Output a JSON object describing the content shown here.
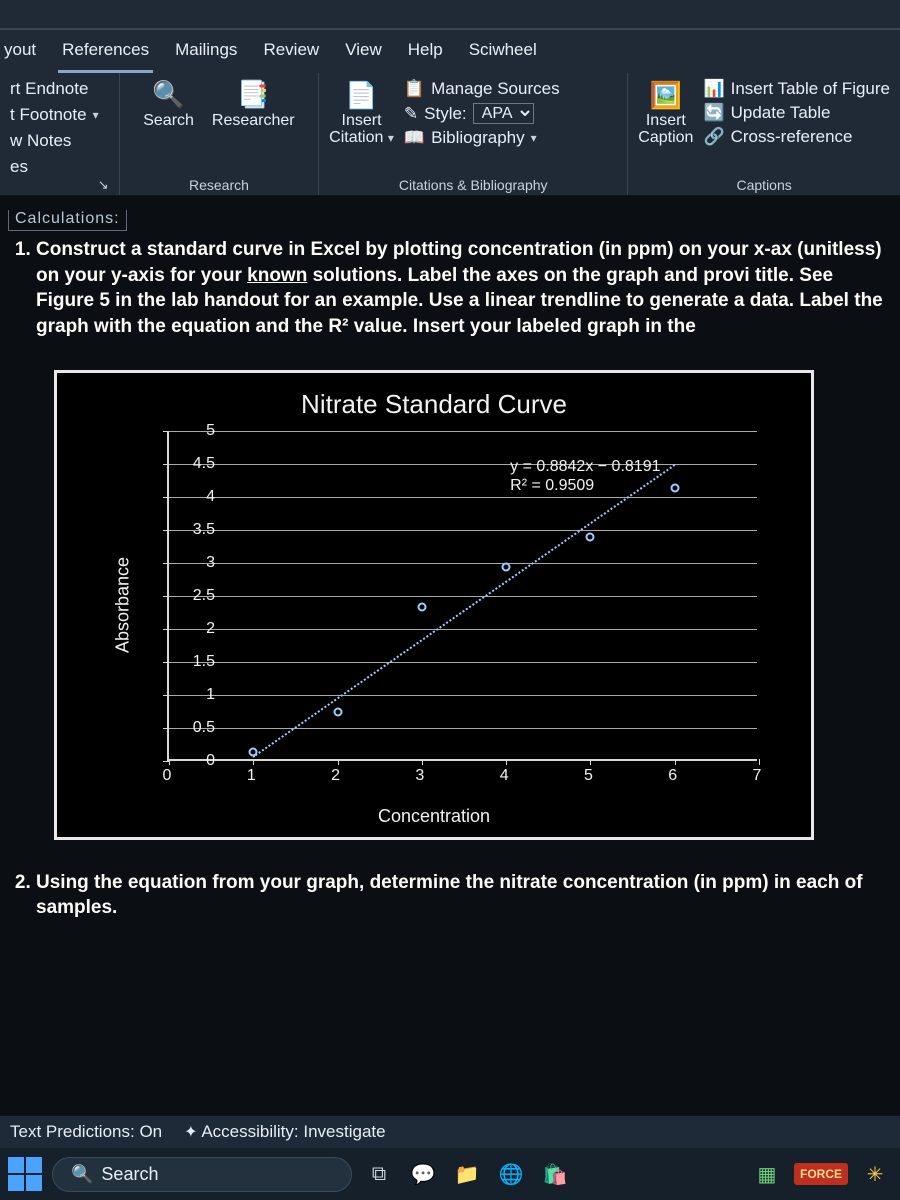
{
  "ribbon": {
    "tabs": [
      "yout",
      "References",
      "Mailings",
      "Review",
      "View",
      "Help",
      "Sciwheel"
    ],
    "active_tab": "References",
    "footnotes": {
      "items": [
        "rt Endnote",
        "t Footnote",
        "w Notes",
        "es"
      ],
      "group_label": ""
    },
    "research": {
      "search": "Search",
      "researcher": "Researcher",
      "group_label": "Research"
    },
    "citations": {
      "insert_citation_top": "Insert",
      "insert_citation_bottom": "Citation",
      "manage_sources": "Manage Sources",
      "style_label": "Style:",
      "style_value": "APA",
      "bibliography": "Bibliography",
      "group_label": "Citations & Bibliography"
    },
    "captions": {
      "insert_caption_top": "Insert",
      "insert_caption_bottom": "Caption",
      "insert_table_figures": "Insert Table of Figure",
      "update_table": "Update Table",
      "cross_reference": "Cross-reference",
      "group_label": "Captions"
    }
  },
  "document": {
    "section_header": "Calculations:",
    "q1": "Construct a standard curve in Excel by plotting concentration (in ppm) on your x-ax (unitless) on your y-axis for your ",
    "q1_underlined": "known",
    "q1_after": " solutions. Label the axes on the graph and provi title. See Figure 5 in the lab handout for an example. Use a linear trendline to generate a data. Label the graph with the equation and the R² value. Insert your labeled graph in the",
    "q2": "Using the equation from your graph, determine the nitrate concentration (in ppm) in each of samples."
  },
  "chart": {
    "type": "scatter",
    "title": "Nitrate Standard Curve",
    "xlabel": "Concentration",
    "ylabel": "Absorbance",
    "xlim": [
      0,
      7
    ],
    "ylim": [
      0,
      5
    ],
    "x_ticks": [
      0,
      1,
      2,
      3,
      4,
      5,
      6,
      7
    ],
    "y_ticks": [
      0,
      0.5,
      1,
      1.5,
      2,
      2.5,
      3,
      3.5,
      4,
      4.5,
      5
    ],
    "y_tick_labels": [
      "0",
      "0.5",
      "1",
      "1.5",
      "2",
      "2.5",
      "3",
      "3.5",
      "4",
      "4.5",
      "5"
    ],
    "points": [
      {
        "x": 1,
        "y": 0.1
      },
      {
        "x": 2,
        "y": 0.7
      },
      {
        "x": 3,
        "y": 2.3
      },
      {
        "x": 4,
        "y": 2.9
      },
      {
        "x": 5,
        "y": 3.35
      },
      {
        "x": 6,
        "y": 4.1
      }
    ],
    "trend_slope": 0.8842,
    "trend_intercept": -0.8191,
    "equation": "y = 0.8842x − 0.8191",
    "r2": "R² = 0.9509",
    "point_color": "#9ccfff",
    "grid_color": "#a9a9a9",
    "axis_color": "#d8d8d8",
    "bg_color": "#000000",
    "border_color": "#e8e8e8",
    "title_fontsize": 26,
    "label_fontsize": 18,
    "tick_fontsize": 16
  },
  "statusbar": {
    "text_predictions": "Text Predictions: On",
    "accessibility": "Accessibility: Investigate"
  },
  "taskbar": {
    "search_placeholder": "Search",
    "force_badge": "FORCE"
  },
  "colors": {
    "ribbon_bg": "#202a36",
    "doc_bg": "#0b0f14",
    "accent": "#8aa6c4"
  }
}
